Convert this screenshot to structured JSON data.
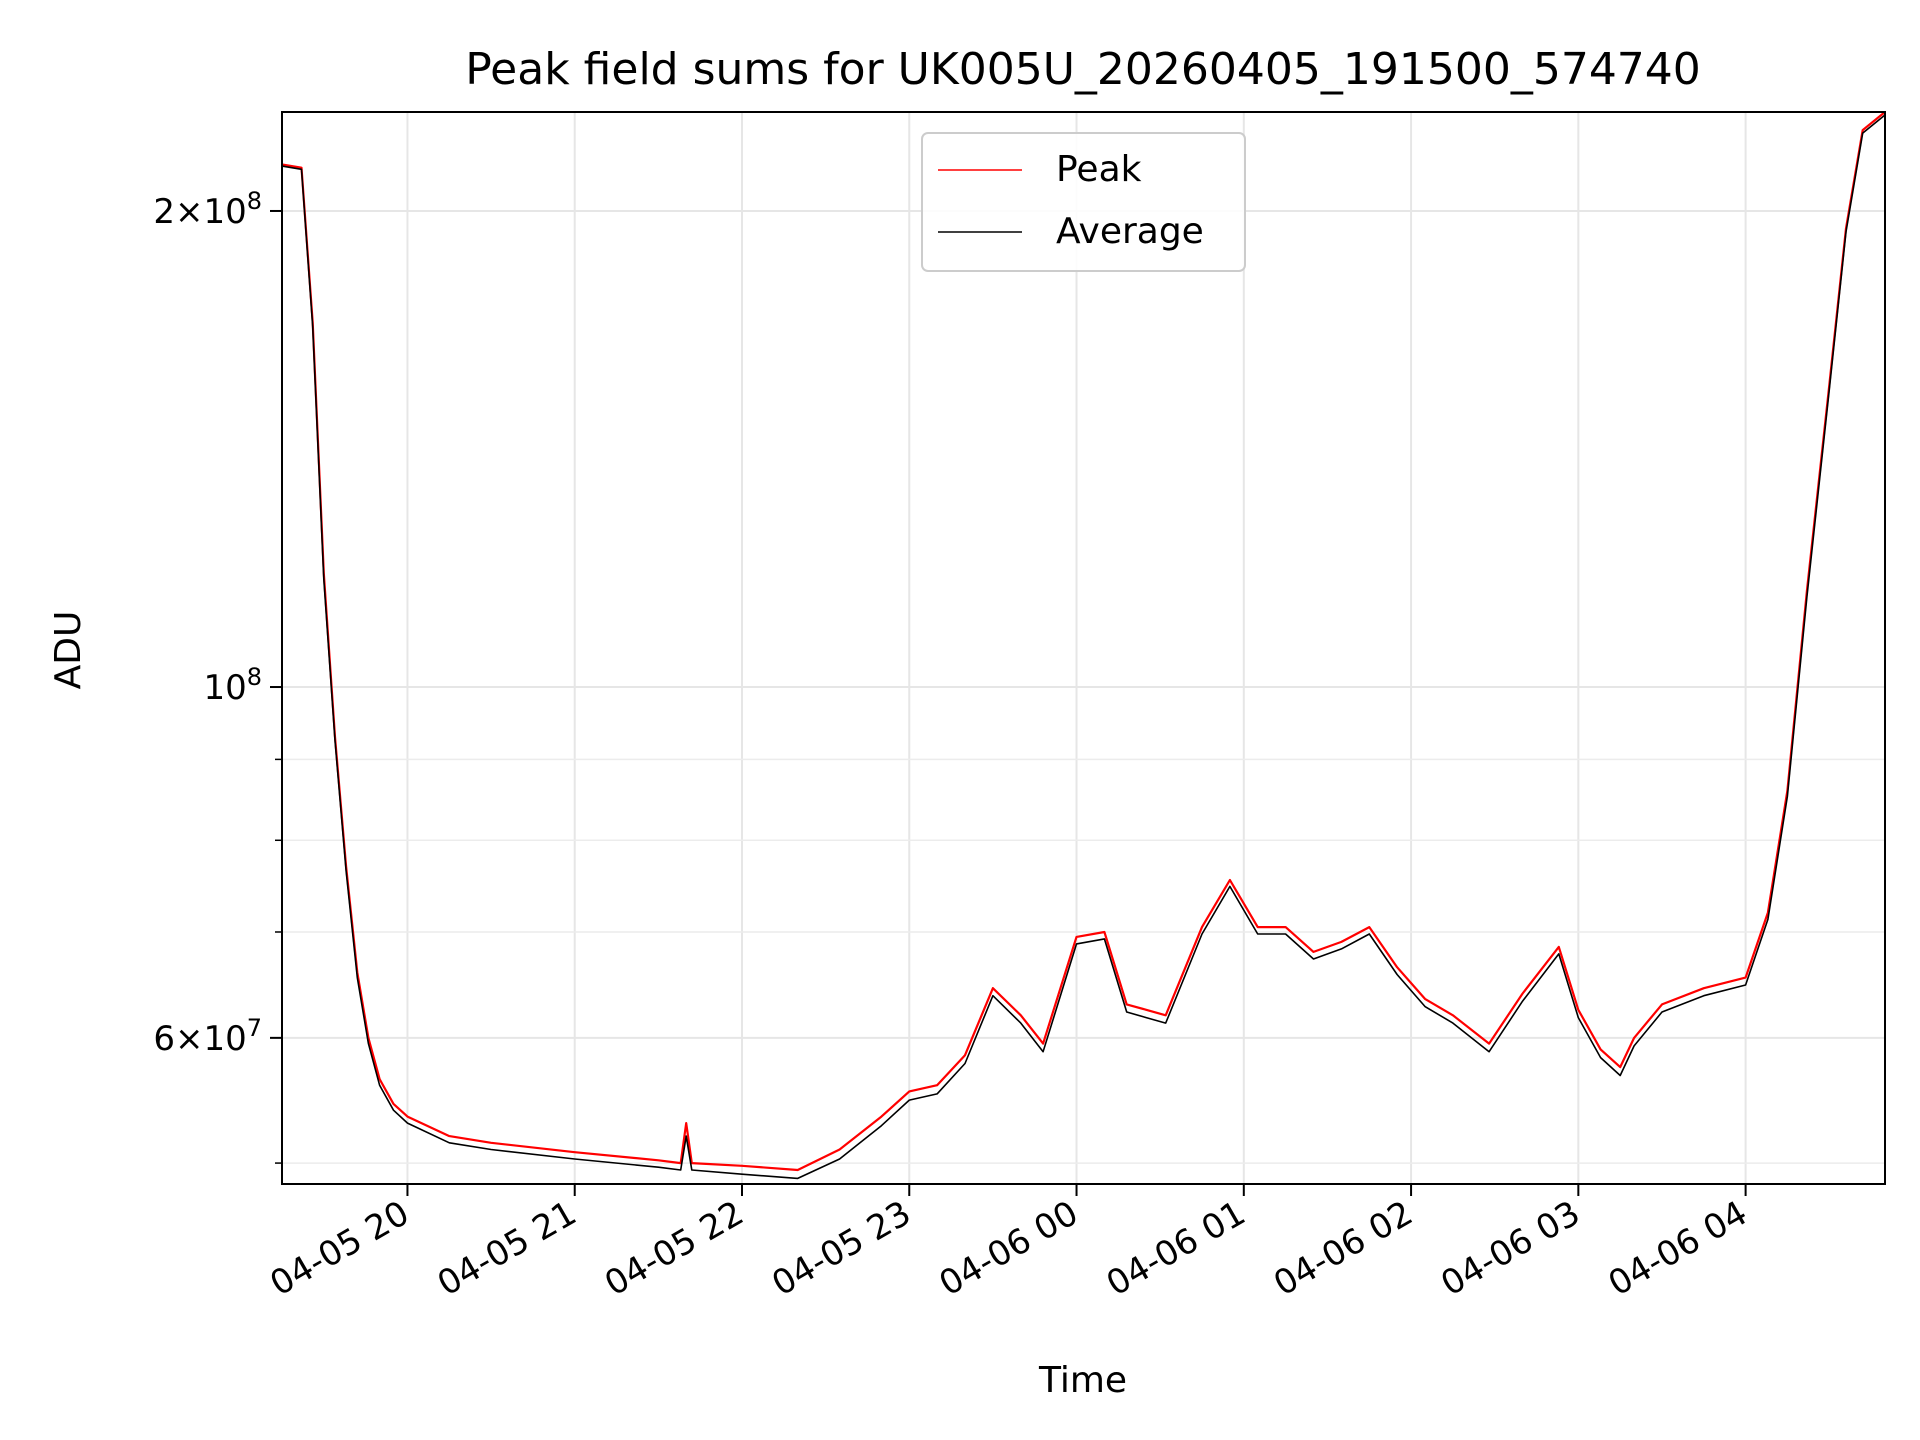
{
  "chart_data": {
    "type": "line",
    "title": "Peak field sums for UK005U_20260405_191500_574740",
    "xlabel": "Time",
    "ylabel": "ADU",
    "yscale": "log",
    "grid": true,
    "legend_position": "top-center",
    "xlim": [
      "2026-04-05 19:15",
      "2026-04-06 04:50"
    ],
    "ylim": [
      48500000,
      231000000
    ],
    "x_ticks": [
      {
        "value": "2026-04-05 20:00",
        "label": "04-05 20"
      },
      {
        "value": "2026-04-05 21:00",
        "label": "04-05 21"
      },
      {
        "value": "2026-04-05 22:00",
        "label": "04-05 22"
      },
      {
        "value": "2026-04-05 23:00",
        "label": "04-05 23"
      },
      {
        "value": "2026-04-06 00:00",
        "label": "04-06 00"
      },
      {
        "value": "2026-04-06 01:00",
        "label": "04-06 01"
      },
      {
        "value": "2026-04-06 02:00",
        "label": "04-06 02"
      },
      {
        "value": "2026-04-06 03:00",
        "label": "04-06 03"
      },
      {
        "value": "2026-04-06 04:00",
        "label": "04-06 04"
      }
    ],
    "y_major_ticks": [
      {
        "value": 200000000,
        "base": "2",
        "sup": "8"
      },
      {
        "value": 100000000,
        "base": "10",
        "sup": "8"
      },
      {
        "value": 60000000,
        "base": "6",
        "sup": "7"
      }
    ],
    "y_minor_ticks": [
      50000000,
      70000000,
      80000000,
      90000000
    ],
    "series": [
      {
        "name": "Peak",
        "color": "#ff0000",
        "x": [
          "2026-04-05 19:15",
          "2026-04-05 19:22",
          "2026-04-05 19:26",
          "2026-04-05 19:30",
          "2026-04-05 19:34",
          "2026-04-05 19:38",
          "2026-04-05 19:42",
          "2026-04-05 19:46",
          "2026-04-05 19:50",
          "2026-04-05 19:55",
          "2026-04-05 20:00",
          "2026-04-05 20:15",
          "2026-04-05 20:30",
          "2026-04-05 21:00",
          "2026-04-05 21:30",
          "2026-04-05 21:38",
          "2026-04-05 21:40",
          "2026-04-05 21:42",
          "2026-04-05 22:00",
          "2026-04-05 22:20",
          "2026-04-05 22:35",
          "2026-04-05 22:50",
          "2026-04-05 23:00",
          "2026-04-05 23:10",
          "2026-04-05 23:20",
          "2026-04-05 23:30",
          "2026-04-05 23:40",
          "2026-04-05 23:48",
          "2026-04-06 00:00",
          "2026-04-06 00:10",
          "2026-04-06 00:18",
          "2026-04-06 00:25",
          "2026-04-06 00:32",
          "2026-04-06 00:45",
          "2026-04-06 00:55",
          "2026-04-06 01:05",
          "2026-04-06 01:15",
          "2026-04-06 01:25",
          "2026-04-06 01:35",
          "2026-04-06 01:45",
          "2026-04-06 01:55",
          "2026-04-06 02:05",
          "2026-04-06 02:15",
          "2026-04-06 02:28",
          "2026-04-06 02:40",
          "2026-04-06 02:53",
          "2026-04-06 03:00",
          "2026-04-06 03:08",
          "2026-04-06 03:15",
          "2026-04-06 03:20",
          "2026-04-06 03:30",
          "2026-04-06 03:45",
          "2026-04-06 04:00",
          "2026-04-06 04:08",
          "2026-04-06 04:15",
          "2026-04-06 04:22",
          "2026-04-06 04:30",
          "2026-04-06 04:36",
          "2026-04-06 04:42",
          "2026-04-06 04:50"
        ],
        "y": [
          214000000,
          213000000,
          170000000,
          118000000,
          93000000,
          77000000,
          66000000,
          60000000,
          56500000,
          54500000,
          53500000,
          52000000,
          51500000,
          50800000,
          50200000,
          50000000,
          53000000,
          50000000,
          49800000,
          49500000,
          51000000,
          53500000,
          55500000,
          56000000,
          58500000,
          64500000,
          62000000,
          59500000,
          69500000,
          70000000,
          63000000,
          62500000,
          62000000,
          70500000,
          75500000,
          70500000,
          70500000,
          68000000,
          69000000,
          70500000,
          66500000,
          63500000,
          62000000,
          59500000,
          64000000,
          68500000,
          62500000,
          59000000,
          57500000,
          60000000,
          63000000,
          64500000,
          65500000,
          72000000,
          86000000,
          115000000,
          155000000,
          195000000,
          225000000,
          231000000
        ]
      },
      {
        "name": "Average",
        "color": "#000000",
        "x": [
          "2026-04-05 19:15",
          "2026-04-05 19:22",
          "2026-04-05 19:26",
          "2026-04-05 19:30",
          "2026-04-05 19:34",
          "2026-04-05 19:38",
          "2026-04-05 19:42",
          "2026-04-05 19:46",
          "2026-04-05 19:50",
          "2026-04-05 19:55",
          "2026-04-05 20:00",
          "2026-04-05 20:15",
          "2026-04-05 20:30",
          "2026-04-05 21:00",
          "2026-04-05 21:30",
          "2026-04-05 21:38",
          "2026-04-05 21:40",
          "2026-04-05 21:42",
          "2026-04-05 22:00",
          "2026-04-05 22:20",
          "2026-04-05 22:35",
          "2026-04-05 22:50",
          "2026-04-05 23:00",
          "2026-04-05 23:10",
          "2026-04-05 23:20",
          "2026-04-05 23:30",
          "2026-04-05 23:40",
          "2026-04-05 23:48",
          "2026-04-06 00:00",
          "2026-04-06 00:10",
          "2026-04-06 00:18",
          "2026-04-06 00:25",
          "2026-04-06 00:32",
          "2026-04-06 00:45",
          "2026-04-06 00:55",
          "2026-04-06 01:05",
          "2026-04-06 01:15",
          "2026-04-06 01:25",
          "2026-04-06 01:35",
          "2026-04-06 01:45",
          "2026-04-06 01:55",
          "2026-04-06 02:05",
          "2026-04-06 02:15",
          "2026-04-06 02:28",
          "2026-04-06 02:40",
          "2026-04-06 02:53",
          "2026-04-06 03:00",
          "2026-04-06 03:08",
          "2026-04-06 03:15",
          "2026-04-06 03:20",
          "2026-04-06 03:30",
          "2026-04-06 03:45",
          "2026-04-06 04:00",
          "2026-04-06 04:08",
          "2026-04-06 04:15",
          "2026-04-06 04:22",
          "2026-04-06 04:30",
          "2026-04-06 04:36",
          "2026-04-06 04:42",
          "2026-04-06 04:50"
        ],
        "y": [
          213500000,
          212500000,
          169000000,
          117000000,
          92500000,
          76500000,
          65500000,
          59500000,
          56000000,
          54000000,
          53000000,
          51500000,
          51000000,
          50300000,
          49700000,
          49500000,
          52000000,
          49500000,
          49200000,
          48900000,
          50300000,
          52800000,
          54800000,
          55300000,
          57800000,
          63800000,
          61300000,
          58800000,
          68800000,
          69300000,
          62300000,
          61800000,
          61300000,
          69800000,
          74800000,
          69800000,
          69800000,
          67300000,
          68300000,
          69800000,
          65800000,
          62800000,
          61300000,
          58800000,
          63300000,
          67800000,
          61800000,
          58300000,
          56800000,
          59300000,
          62300000,
          63800000,
          64800000,
          71300000,
          85300000,
          114000000,
          154000000,
          194000000,
          224000000,
          230000000
        ]
      }
    ]
  }
}
